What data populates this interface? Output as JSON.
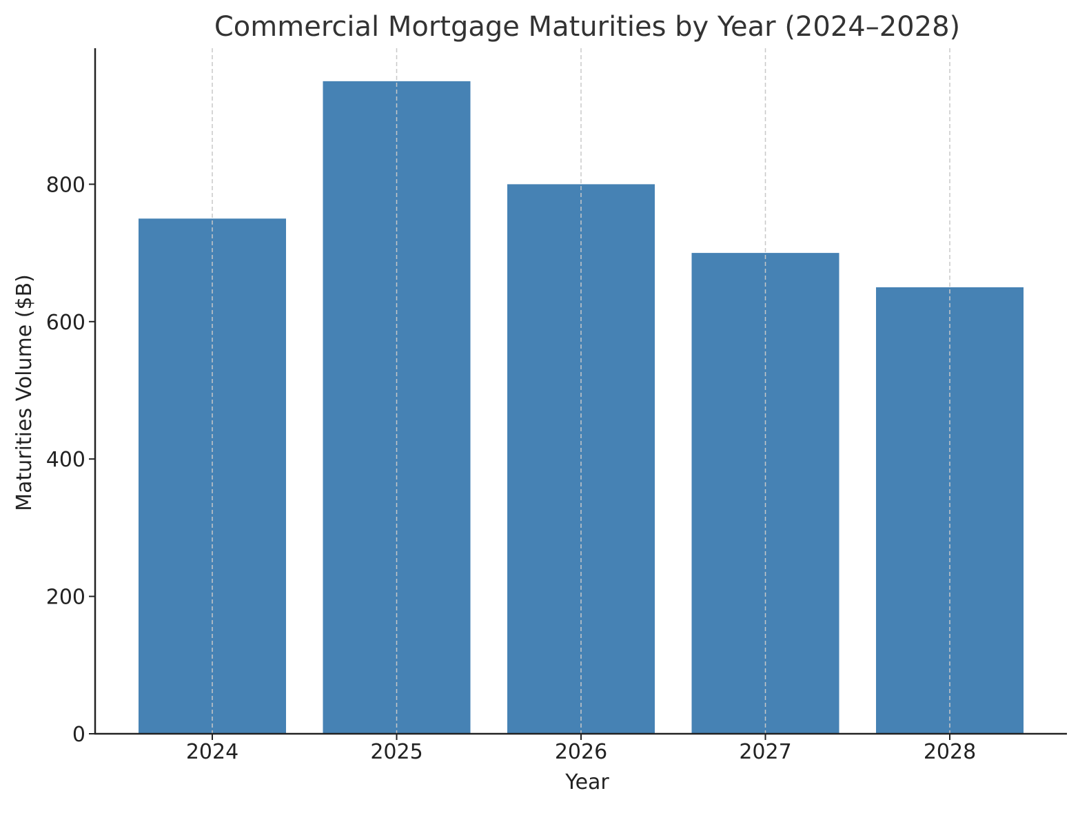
{
  "chart_data": {
    "type": "bar",
    "title": "Commercial Mortgage Maturities by Year (2024–2028)",
    "xlabel": "Year",
    "ylabel": "Maturities Volume ($B)",
    "categories": [
      "2024",
      "2025",
      "2026",
      "2027",
      "2028"
    ],
    "values": [
      750,
      950,
      800,
      700,
      650
    ],
    "ylim": [
      0,
      998
    ],
    "yticks": [
      0,
      200,
      400,
      600,
      800
    ],
    "grid": "vertical dashed lines at category centers",
    "bar_color": "#4682b4",
    "grid_color": "#c8c8c8",
    "axis_color": "#222222"
  }
}
